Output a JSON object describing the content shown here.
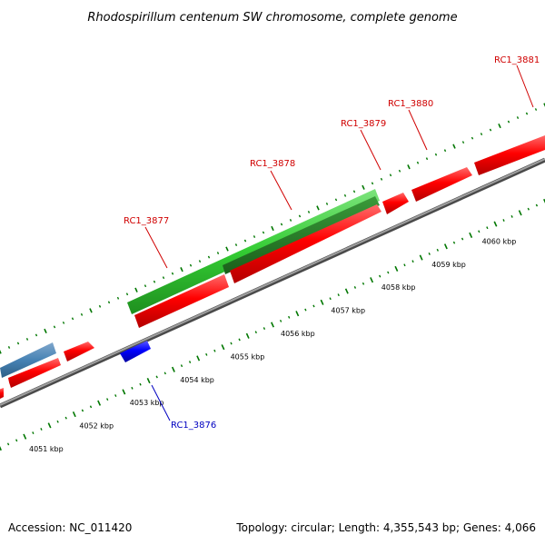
{
  "title": "Rhodospirillum centenum SW chromosome, complete genome",
  "footer": {
    "accession": "Accession: NC_011420",
    "topology": "Topology: circular; Length: 4,355,543 bp; Genes: 4,066"
  },
  "scale_labels": [
    "4051 kbp",
    "4052 kbp",
    "4053 kbp",
    "4054 kbp",
    "4055 kbp",
    "4056 kbp",
    "4057 kbp",
    "4058 kbp",
    "4059 kbp",
    "4060 kbp"
  ],
  "gene_labels": [
    {
      "id": "RC1_3876",
      "text": "RC1_3876",
      "color": "#0000c0"
    },
    {
      "id": "RC1_3877",
      "text": "RC1_3877",
      "color": "#d00000"
    },
    {
      "id": "RC1_3878",
      "text": "RC1_3878",
      "color": "#d00000"
    },
    {
      "id": "RC1_3879",
      "text": "RC1_3879",
      "color": "#d00000"
    },
    {
      "id": "RC1_3880",
      "text": "RC1_3880",
      "color": "#d00000"
    },
    {
      "id": "RC1_3881",
      "text": "RC1_3881",
      "color": "#d00000"
    }
  ],
  "colors": {
    "cds_forward": "#ff0000",
    "cds_reverse": "#0000ff",
    "rna_feature": "#4682b4",
    "highlight_feature": "#33cc33",
    "backbone": "#808080",
    "tick": "#007700"
  }
}
